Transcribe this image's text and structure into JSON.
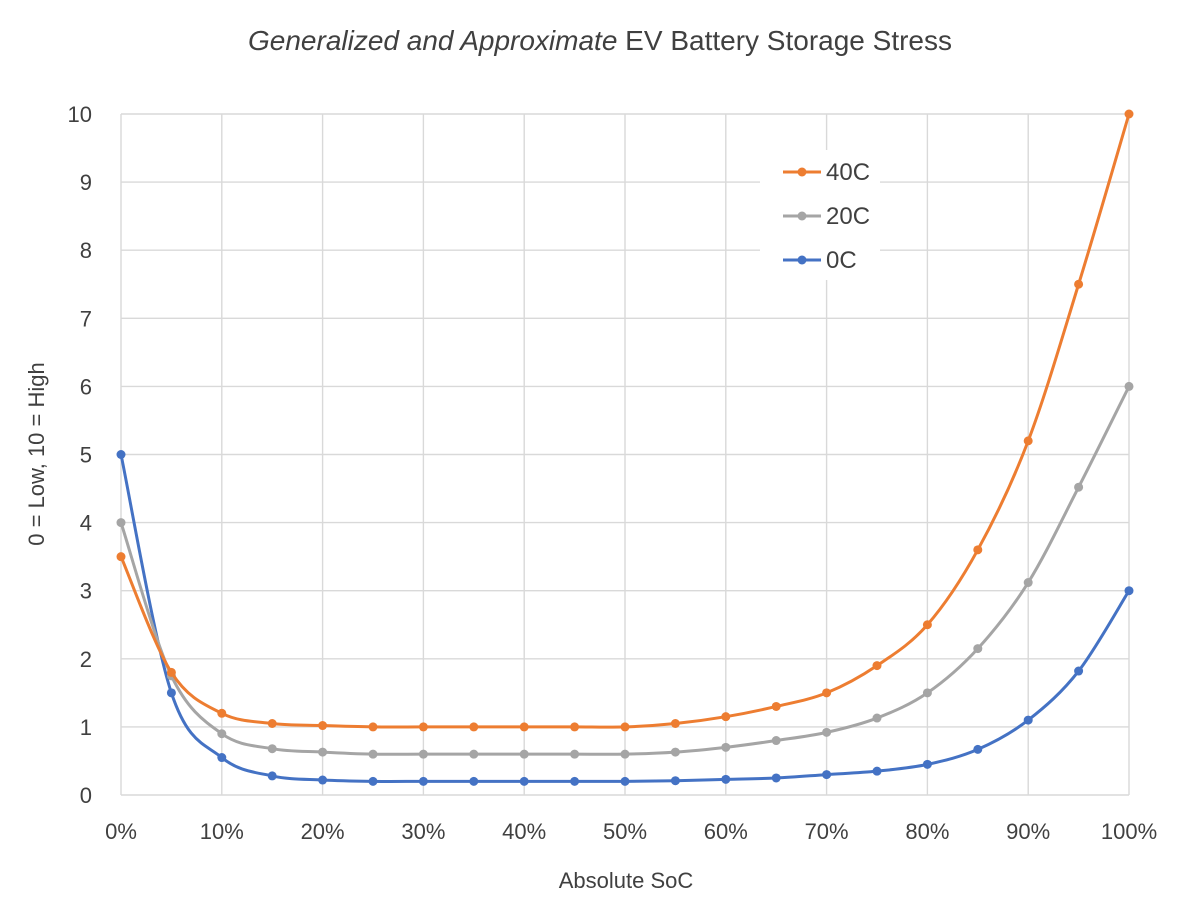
{
  "chart_data": {
    "type": "line",
    "title_italic": "Generalized and Approximate",
    "title_rest": " EV Battery Storage Stress",
    "xlabel": "Absolute SoC",
    "ylabel": "0 = Low, 10 = High",
    "x": [
      0,
      5,
      10,
      15,
      20,
      25,
      30,
      35,
      40,
      45,
      50,
      55,
      60,
      65,
      70,
      75,
      80,
      85,
      90,
      95,
      100
    ],
    "x_tick_labels": [
      "0%",
      "10%",
      "20%",
      "30%",
      "40%",
      "50%",
      "60%",
      "70%",
      "80%",
      "90%",
      "100%"
    ],
    "y_tick_labels": [
      "0",
      "1",
      "2",
      "3",
      "4",
      "5",
      "6",
      "7",
      "8",
      "9",
      "10"
    ],
    "xlim": [
      0,
      100
    ],
    "ylim": [
      0,
      10
    ],
    "grid": true,
    "legend_position": "top-right",
    "series": [
      {
        "name": "40C",
        "color": "#ED7D31",
        "values": [
          3.5,
          1.8,
          1.2,
          1.05,
          1.02,
          1.0,
          1.0,
          1.0,
          1.0,
          1.0,
          1.0,
          1.05,
          1.15,
          1.3,
          1.5,
          1.9,
          2.5,
          3.6,
          5.2,
          7.5,
          10.0
        ]
      },
      {
        "name": "20C",
        "color": "#A5A5A5",
        "values": [
          4.0,
          1.75,
          0.9,
          0.68,
          0.63,
          0.6,
          0.6,
          0.6,
          0.6,
          0.6,
          0.6,
          0.63,
          0.7,
          0.8,
          0.92,
          1.13,
          1.5,
          2.15,
          3.12,
          4.52,
          6.0
        ]
      },
      {
        "name": "0C",
        "color": "#4472C4",
        "values": [
          5.0,
          1.5,
          0.55,
          0.28,
          0.22,
          0.2,
          0.2,
          0.2,
          0.2,
          0.2,
          0.2,
          0.21,
          0.23,
          0.25,
          0.3,
          0.35,
          0.45,
          0.67,
          1.1,
          1.82,
          3.0
        ]
      }
    ]
  }
}
